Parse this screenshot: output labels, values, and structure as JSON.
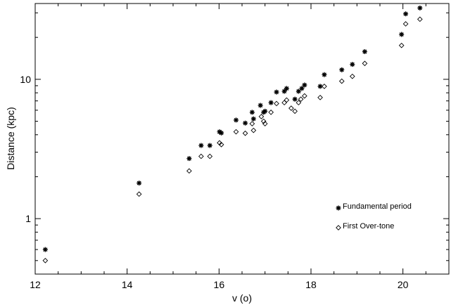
{
  "chart_data": {
    "type": "scatter",
    "title": "",
    "xlabel": "v (o)",
    "ylabel": "Distance (kpc)",
    "xlim": [
      12,
      21
    ],
    "ylim": [
      0.4,
      35
    ],
    "yscale": "log",
    "grid": false,
    "legend_position": "lower-right",
    "x_ticks": [
      "12",
      "14",
      "16",
      "18",
      "20"
    ],
    "y_ticks": [
      "1",
      "10"
    ],
    "series": [
      {
        "name": "Fundamental period",
        "marker": "asterisk",
        "color": "#000000",
        "points": [
          [
            12.22,
            0.6
          ],
          [
            14.26,
            1.8
          ],
          [
            15.35,
            2.7
          ],
          [
            15.61,
            3.35
          ],
          [
            15.8,
            3.35
          ],
          [
            16.01,
            4.2
          ],
          [
            16.05,
            4.12
          ],
          [
            16.37,
            5.1
          ],
          [
            16.57,
            4.85
          ],
          [
            16.72,
            5.8
          ],
          [
            16.75,
            5.2
          ],
          [
            16.9,
            6.5
          ],
          [
            16.97,
            5.8
          ],
          [
            17.0,
            5.9
          ],
          [
            17.13,
            6.8
          ],
          [
            17.25,
            8.1
          ],
          [
            17.42,
            8.2
          ],
          [
            17.47,
            8.6
          ],
          [
            17.65,
            7.2
          ],
          [
            17.73,
            8.2
          ],
          [
            17.8,
            8.6
          ],
          [
            17.86,
            9.1
          ],
          [
            18.2,
            8.9
          ],
          [
            18.29,
            10.8
          ],
          [
            18.67,
            11.7
          ],
          [
            18.9,
            12.8
          ],
          [
            19.17,
            15.8
          ],
          [
            19.97,
            21.0
          ],
          [
            20.06,
            29.5
          ],
          [
            20.37,
            32.5
          ]
        ]
      },
      {
        "name": "First Over-tone",
        "marker": "diamond",
        "color": "#000000",
        "points": [
          [
            12.22,
            0.5
          ],
          [
            14.26,
            1.5
          ],
          [
            15.35,
            2.2
          ],
          [
            15.61,
            2.8
          ],
          [
            15.8,
            2.8
          ],
          [
            16.01,
            3.5
          ],
          [
            16.05,
            3.4
          ],
          [
            16.37,
            4.2
          ],
          [
            16.57,
            4.1
          ],
          [
            16.72,
            4.8
          ],
          [
            16.75,
            4.3
          ],
          [
            16.92,
            5.4
          ],
          [
            16.97,
            5.0
          ],
          [
            17.0,
            4.8
          ],
          [
            17.13,
            5.8
          ],
          [
            17.25,
            6.7
          ],
          [
            17.42,
            6.8
          ],
          [
            17.47,
            7.1
          ],
          [
            17.57,
            6.2
          ],
          [
            17.65,
            5.9
          ],
          [
            17.73,
            6.8
          ],
          [
            17.78,
            7.2
          ],
          [
            17.86,
            7.6
          ],
          [
            18.2,
            7.4
          ],
          [
            18.29,
            8.9
          ],
          [
            18.67,
            9.7
          ],
          [
            18.9,
            10.5
          ],
          [
            19.17,
            13.0
          ],
          [
            19.97,
            17.5
          ],
          [
            20.06,
            25.0
          ],
          [
            20.37,
            27.0
          ]
        ]
      }
    ]
  }
}
